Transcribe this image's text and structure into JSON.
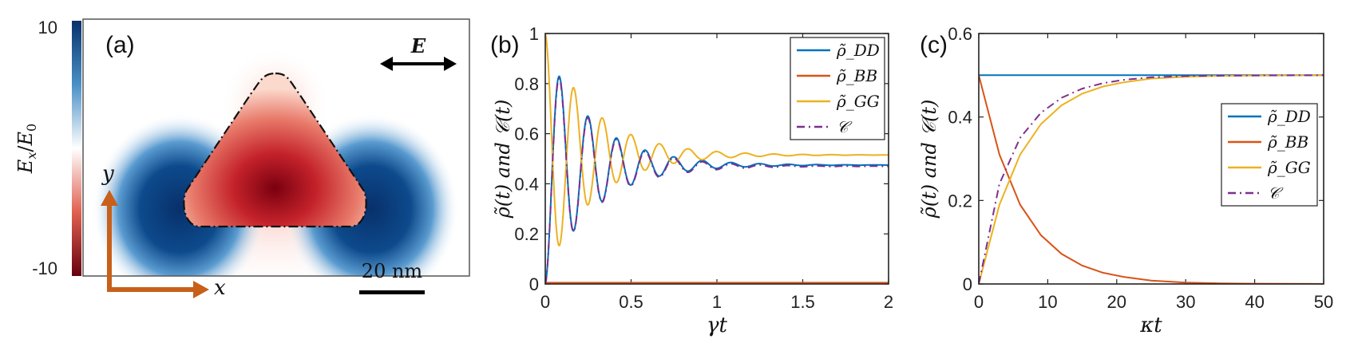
{
  "colors": {
    "blue": "#0072BD",
    "orange": "#D95319",
    "yellow": "#EDB120",
    "purple": "#7E2F8E",
    "arrow": "#C8601A"
  },
  "panel_a": {
    "label": "(a)",
    "colorbar": {
      "max_label": "10",
      "min_label": "-10",
      "title": "E_x / E_0"
    },
    "scale_label": "20 nm",
    "field_label": "E",
    "x_label": "x",
    "y_label": "y"
  },
  "chart_data": [
    {
      "panel": "(b)",
      "type": "line",
      "xlabel": "γt",
      "ylabel": "ρ̃(t) and 𝒞(t)",
      "xlim": [
        0,
        2
      ],
      "ylim": [
        0,
        1
      ],
      "xticks": [
        "0",
        "0.5",
        "1",
        "1.5",
        "2"
      ],
      "yticks": [
        "0",
        "0.2",
        "0.4",
        "0.6",
        "0.8",
        "1"
      ],
      "legend_position": "top-right",
      "series": [
        {
          "name": "ρ̃_DD",
          "color": "#0072BD",
          "style": "solid",
          "model": {
            "start": 0,
            "eq": 0.475,
            "amp": -0.475,
            "period": 0.1667,
            "tau": 0.28
          }
        },
        {
          "name": "ρ̃_BB",
          "color": "#D95319",
          "style": "solid",
          "model": {
            "const": 0.005
          }
        },
        {
          "name": "ρ̃_GG",
          "color": "#EDB120",
          "style": "solid",
          "model": {
            "start": 1,
            "eq": 0.515,
            "amp": 0.485,
            "period": 0.1667,
            "tau": 0.28
          }
        },
        {
          "name": "𝒞",
          "color": "#7E2F8E",
          "style": "dashdot",
          "model": {
            "start": 0,
            "eq": 0.47,
            "amp": -0.47,
            "period": 0.1667,
            "tau": 0.28
          }
        }
      ]
    },
    {
      "panel": "(c)",
      "type": "line",
      "xlabel": "κt",
      "ylabel": "ρ̃(t) and 𝒞(t)",
      "xlim": [
        0,
        50
      ],
      "ylim": [
        0,
        0.6
      ],
      "xticks": [
        "0",
        "10",
        "20",
        "30",
        "40",
        "50"
      ],
      "yticks": [
        "0",
        "0.2",
        "0.4",
        "0.6"
      ],
      "legend_position": "right",
      "series": [
        {
          "name": "ρ̃_DD",
          "color": "#0072BD",
          "style": "solid",
          "x": [
            0,
            50
          ],
          "y": [
            0.5,
            0.5
          ]
        },
        {
          "name": "ρ̃_BB",
          "color": "#D95319",
          "style": "solid",
          "x": [
            0,
            3,
            6,
            9,
            12,
            15,
            18,
            21,
            25,
            30,
            35,
            40,
            50
          ],
          "y": [
            0.5,
            0.31,
            0.19,
            0.117,
            0.072,
            0.044,
            0.027,
            0.017,
            0.008,
            0.0035,
            0.0015,
            0.0007,
            0.0001
          ]
        },
        {
          "name": "ρ̃_GG",
          "color": "#EDB120",
          "style": "solid",
          "x": [
            0,
            3,
            6,
            9,
            12,
            15,
            18,
            21,
            25,
            30,
            35,
            40,
            50
          ],
          "y": [
            0,
            0.19,
            0.31,
            0.383,
            0.428,
            0.456,
            0.473,
            0.483,
            0.492,
            0.4965,
            0.4985,
            0.4993,
            0.4999
          ]
        },
        {
          "name": "𝒞",
          "color": "#7E2F8E",
          "style": "dashdot",
          "x": [
            0,
            3,
            6,
            9,
            12,
            15,
            18,
            21,
            25,
            30,
            35,
            40,
            50
          ],
          "y": [
            0,
            0.24,
            0.35,
            0.41,
            0.446,
            0.468,
            0.481,
            0.489,
            0.495,
            0.498,
            0.499,
            0.4995,
            0.5
          ]
        }
      ]
    }
  ]
}
